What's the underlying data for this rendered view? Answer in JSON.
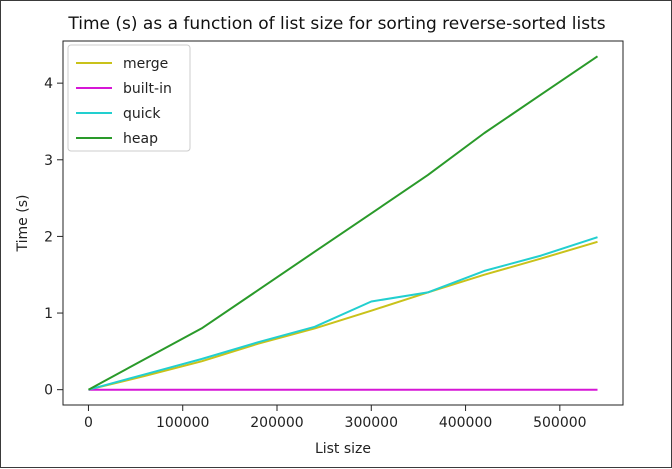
{
  "chart_data": {
    "type": "line",
    "title": "Time (s) as a function of list size for sorting reverse-sorted lists",
    "xlabel": "List size",
    "ylabel": "Time (s)",
    "xlim": [
      -27000,
      567000
    ],
    "ylim": [
      -0.2,
      4.55
    ],
    "xticks": [
      0,
      100000,
      200000,
      300000,
      400000,
      500000
    ],
    "xtick_labels": [
      "0",
      "100000",
      "200000",
      "300000",
      "400000",
      "500000"
    ],
    "yticks": [
      0,
      1,
      2,
      3,
      4
    ],
    "ytick_labels": [
      "0",
      "1",
      "2",
      "3",
      "4"
    ],
    "grid": false,
    "legend_position": "top-left",
    "x": [
      0,
      60000,
      120000,
      180000,
      240000,
      300000,
      360000,
      420000,
      480000,
      540000
    ],
    "series": [
      {
        "name": "merge",
        "color": "#c9c21a",
        "values": [
          0,
          0.18,
          0.37,
          0.6,
          0.8,
          1.03,
          1.27,
          1.5,
          1.71,
          1.93
        ]
      },
      {
        "name": "built-in",
        "color": "#d616d6",
        "values": [
          0,
          0,
          0,
          0,
          0,
          0,
          0,
          0,
          0,
          0
        ]
      },
      {
        "name": "quick",
        "color": "#22cfcf",
        "values": [
          0,
          0.2,
          0.4,
          0.62,
          0.82,
          1.15,
          1.27,
          1.55,
          1.75,
          1.99
        ]
      },
      {
        "name": "heap",
        "color": "#2a9a2a",
        "values": [
          0,
          0.4,
          0.8,
          1.3,
          1.8,
          2.3,
          2.8,
          3.35,
          3.85,
          4.35
        ]
      }
    ]
  }
}
